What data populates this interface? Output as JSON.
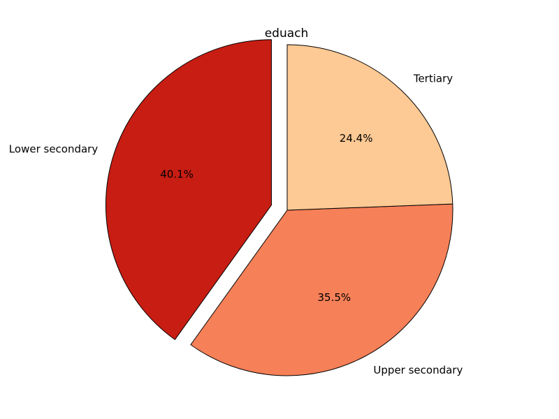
{
  "chart_data": {
    "type": "pie",
    "title": "eduach",
    "categories": [
      "Lower secondary",
      "Upper secondary",
      "Tertiary"
    ],
    "values": [
      40.1,
      35.5,
      24.4
    ],
    "percent_labels": [
      "40.1%",
      "35.5%",
      "24.4%"
    ],
    "colors": [
      "#c81d13",
      "#f68058",
      "#fdc994"
    ],
    "exploded": [
      true,
      false,
      false
    ],
    "start_angle_deg": 90,
    "direction": "counterclockwise",
    "legend": "none"
  }
}
